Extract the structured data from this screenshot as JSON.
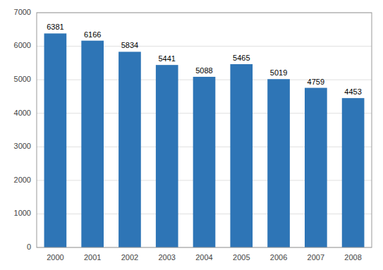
{
  "chart_data": {
    "type": "bar",
    "categories": [
      "2000",
      "2001",
      "2002",
      "2003",
      "2004",
      "2005",
      "2006",
      "2007",
      "2008"
    ],
    "values": [
      6381,
      6166,
      5834,
      5441,
      5088,
      5465,
      5019,
      4759,
      4453
    ],
    "color": "#2E75B6",
    "ylim": [
      0,
      7000
    ],
    "yticks": [
      0,
      1000,
      2000,
      3000,
      4000,
      5000,
      6000,
      7000
    ],
    "grid": true,
    "data_labels": true
  }
}
